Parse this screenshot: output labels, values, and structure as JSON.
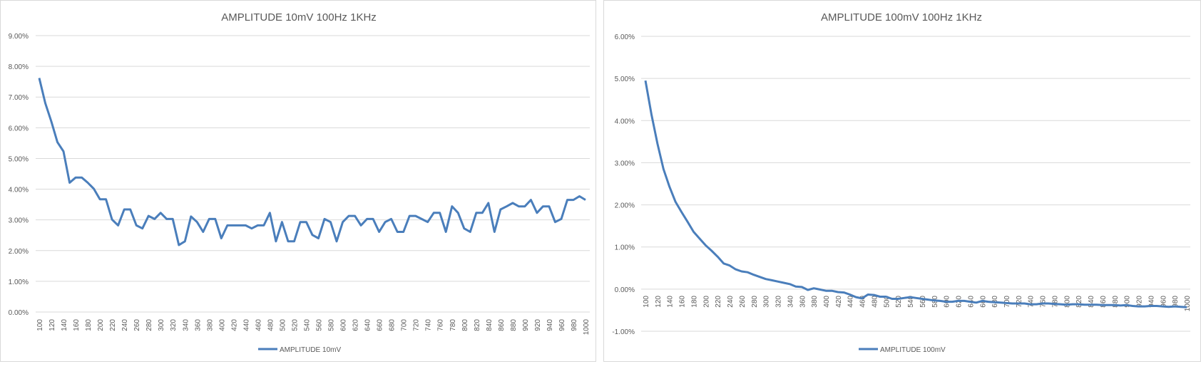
{
  "colors": {
    "series": "#4a7ebb",
    "grid": "#d9d9d9",
    "text": "#595959",
    "border": "#d9d9d9"
  },
  "chart_data": [
    {
      "type": "line",
      "title": "AMPLITUDE 10mV 100Hz 1KHz",
      "xlabel": "",
      "ylabel": "",
      "ylim": [
        0,
        0.09
      ],
      "y_ticks": [
        0,
        0.01,
        0.02,
        0.03,
        0.04,
        0.05,
        0.06,
        0.07,
        0.08,
        0.09
      ],
      "y_tick_labels": [
        "0.00%",
        "1.00%",
        "2.00%",
        "3.00%",
        "4.00%",
        "5.00%",
        "6.00%",
        "7.00%",
        "8.00%",
        "9.00%"
      ],
      "x_tick_labels": [
        "100",
        "120",
        "140",
        "160",
        "180",
        "200",
        "220",
        "240",
        "260",
        "280",
        "300",
        "320",
        "340",
        "360",
        "380",
        "400",
        "420",
        "440",
        "460",
        "480",
        "500",
        "520",
        "540",
        "560",
        "580",
        "600",
        "620",
        "640",
        "660",
        "680",
        "700",
        "720",
        "740",
        "760",
        "780",
        "800",
        "820",
        "840",
        "860",
        "880",
        "900",
        "920",
        "940",
        "960",
        "980",
        "1000"
      ],
      "grid": true,
      "legend": "bottom",
      "series": [
        {
          "name": "AMPLITUDE 10mV",
          "x": [
            100,
            110,
            120,
            130,
            140,
            150,
            160,
            170,
            180,
            190,
            200,
            210,
            220,
            230,
            240,
            250,
            260,
            270,
            280,
            290,
            300,
            310,
            320,
            330,
            340,
            350,
            360,
            370,
            380,
            390,
            400,
            410,
            420,
            430,
            440,
            450,
            460,
            470,
            480,
            490,
            500,
            510,
            520,
            530,
            540,
            550,
            560,
            570,
            580,
            590,
            600,
            610,
            620,
            630,
            640,
            650,
            660,
            670,
            680,
            690,
            700,
            710,
            720,
            730,
            740,
            750,
            760,
            770,
            780,
            790,
            800,
            810,
            820,
            830,
            840,
            850,
            860,
            870,
            880,
            890,
            900,
            910,
            920,
            930,
            940,
            950,
            960,
            970,
            980,
            990,
            1000
          ],
          "values": [
            0.0762,
            0.068,
            0.062,
            0.0553,
            0.0523,
            0.0421,
            0.0438,
            0.0438,
            0.0421,
            0.0401,
            0.0367,
            0.0367,
            0.0301,
            0.0282,
            0.0334,
            0.0334,
            0.0282,
            0.0272,
            0.0313,
            0.0303,
            0.0323,
            0.0303,
            0.0303,
            0.0218,
            0.023,
            0.0311,
            0.0293,
            0.0261,
            0.0303,
            0.0303,
            0.024,
            0.0282,
            0.0282,
            0.0282,
            0.0282,
            0.0272,
            0.0282,
            0.0282,
            0.0323,
            0.023,
            0.0293,
            0.023,
            0.023,
            0.0293,
            0.0293,
            0.0251,
            0.024,
            0.0303,
            0.0293,
            0.023,
            0.0293,
            0.0313,
            0.0313,
            0.0282,
            0.0303,
            0.0303,
            0.0261,
            0.0293,
            0.0303,
            0.0261,
            0.0261,
            0.0313,
            0.0313,
            0.0303,
            0.0293,
            0.0323,
            0.0323,
            0.0261,
            0.0344,
            0.0323,
            0.0272,
            0.0261,
            0.0323,
            0.0323,
            0.0355,
            0.0261,
            0.0334,
            0.0344,
            0.0355,
            0.0344,
            0.0344,
            0.0365,
            0.0323,
            0.0344,
            0.0344,
            0.0293,
            0.0303,
            0.0365,
            0.0365,
            0.0377,
            0.0365
          ]
        }
      ]
    },
    {
      "type": "line",
      "title": "AMPLITUDE 100mV 100Hz 1KHz",
      "xlabel": "",
      "ylabel": "",
      "ylim": [
        -0.01,
        0.06
      ],
      "y_ticks": [
        -0.01,
        0,
        0.01,
        0.02,
        0.03,
        0.04,
        0.05,
        0.06
      ],
      "y_tick_labels": [
        "-1.00%",
        "0.00%",
        "1.00%",
        "2.00%",
        "3.00%",
        "4.00%",
        "5.00%",
        "6.00%"
      ],
      "x_tick_labels": [
        "100",
        "120",
        "140",
        "160",
        "180",
        "200",
        "220",
        "240",
        "260",
        "280",
        "300",
        "320",
        "340",
        "360",
        "380",
        "400",
        "420",
        "440",
        "460",
        "480",
        "500",
        "520",
        "540",
        "560",
        "580",
        "600",
        "620",
        "640",
        "660",
        "680",
        "700",
        "720",
        "740",
        "760",
        "780",
        "800",
        "820",
        "840",
        "860",
        "880",
        "900",
        "920",
        "940",
        "960",
        "980",
        "1000"
      ],
      "grid": true,
      "legend": "bottom",
      "series": [
        {
          "name": "AMPLITUDE 100mV",
          "x": [
            100,
            110,
            120,
            130,
            140,
            150,
            160,
            170,
            180,
            190,
            200,
            210,
            220,
            230,
            240,
            250,
            260,
            270,
            280,
            290,
            300,
            310,
            320,
            330,
            340,
            350,
            360,
            370,
            380,
            390,
            400,
            410,
            420,
            430,
            440,
            450,
            460,
            470,
            480,
            490,
            500,
            510,
            520,
            530,
            540,
            550,
            560,
            570,
            580,
            590,
            600,
            610,
            620,
            630,
            640,
            650,
            660,
            670,
            680,
            690,
            700,
            710,
            720,
            730,
            740,
            750,
            760,
            770,
            780,
            790,
            800,
            810,
            820,
            830,
            840,
            850,
            860,
            870,
            880,
            890,
            900,
            910,
            920,
            930,
            940,
            950,
            960,
            970,
            980,
            990,
            1000
          ],
          "values": [
            0.0495,
            0.0415,
            0.0345,
            0.0285,
            0.0243,
            0.0207,
            0.0183,
            0.016,
            0.0136,
            0.012,
            0.0104,
            0.0091,
            0.0077,
            0.0061,
            0.0056,
            0.0047,
            0.0042,
            0.004,
            0.0034,
            0.0029,
            0.0024,
            0.0021,
            0.0018,
            0.0015,
            0.0012,
            0.0006,
            0.0005,
            -0.0002,
            0.0002,
            -0.0001,
            -0.0004,
            -0.0004,
            -0.0007,
            -0.0008,
            -0.0013,
            -0.0019,
            -0.0022,
            -0.0013,
            -0.0014,
            -0.0018,
            -0.0018,
            -0.0023,
            -0.0023,
            -0.0021,
            -0.0019,
            -0.0021,
            -0.0023,
            -0.0025,
            -0.0027,
            -0.0028,
            -0.003,
            -0.003,
            -0.0028,
            -0.0028,
            -0.003,
            -0.0032,
            -0.0028,
            -0.003,
            -0.0031,
            -0.0032,
            -0.0033,
            -0.0034,
            -0.0034,
            -0.0034,
            -0.0036,
            -0.0036,
            -0.0034,
            -0.0034,
            -0.0035,
            -0.0036,
            -0.0037,
            -0.0036,
            -0.0036,
            -0.0037,
            -0.0037,
            -0.0037,
            -0.0038,
            -0.0038,
            -0.0038,
            -0.0039,
            -0.0038,
            -0.004,
            -0.0041,
            -0.0041,
            -0.004,
            -0.004,
            -0.0041,
            -0.0042,
            -0.0041,
            -0.0042,
            -0.0043
          ]
        }
      ]
    }
  ]
}
